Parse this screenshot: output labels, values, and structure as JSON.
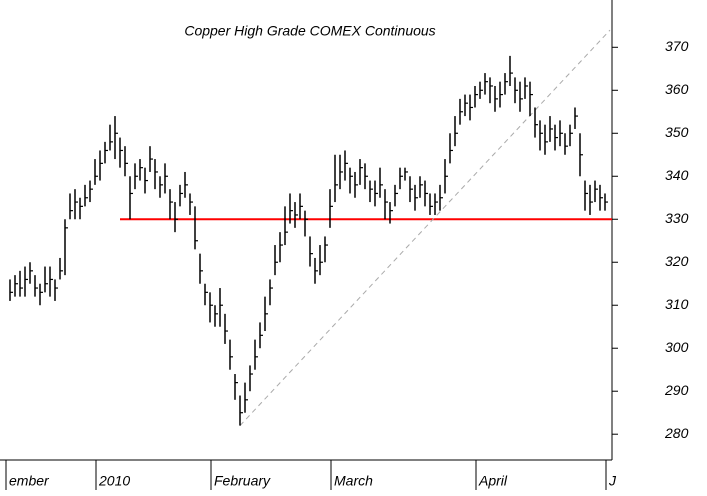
{
  "chart_data": {
    "type": "ohlc",
    "title": "Copper High Grade COMEX Continuous",
    "categories": [
      "ember",
      null,
      null,
      null,
      null,
      null,
      null,
      null,
      null,
      null,
      null,
      null,
      null,
      null,
      null,
      null,
      null,
      null,
      "2010",
      null,
      null,
      null,
      null,
      null,
      null,
      null,
      null,
      null,
      null,
      null,
      null,
      null,
      null,
      null,
      null,
      null,
      null,
      null,
      null,
      null,
      null,
      "February",
      null,
      null,
      null,
      null,
      null,
      null,
      null,
      null,
      null,
      null,
      null,
      null,
      null,
      null,
      null,
      null,
      null,
      null,
      null,
      null,
      null,
      null,
      null,
      "March",
      null,
      null,
      null,
      null,
      null,
      null,
      null,
      null,
      null,
      null,
      null,
      null,
      null,
      null,
      null,
      null,
      null,
      null,
      null,
      null,
      null,
      null,
      null,
      null,
      null,
      null,
      null,
      null,
      "April",
      null,
      null,
      null,
      null,
      null,
      null,
      null,
      null,
      null,
      null,
      null,
      null,
      null,
      null,
      null,
      null,
      null,
      null,
      null,
      null,
      null,
      null,
      null,
      null,
      null,
      "J"
    ],
    "high": [
      316,
      317,
      318,
      319,
      320,
      317,
      315,
      319,
      319,
      316,
      321,
      330,
      336,
      337,
      335,
      338,
      339,
      344,
      346,
      348,
      352,
      354,
      349,
      347,
      340,
      343,
      344,
      342,
      347,
      344,
      340,
      343,
      337,
      334,
      338,
      341,
      336,
      333,
      322,
      315,
      313,
      310,
      314,
      308,
      302,
      294,
      289,
      292,
      296,
      302,
      306,
      312,
      316,
      324,
      327,
      333,
      336,
      334,
      336,
      332,
      326,
      321,
      324,
      326,
      337,
      345,
      345,
      346,
      342,
      341,
      344,
      343,
      339,
      339,
      342,
      337,
      334,
      338,
      342,
      342,
      340,
      338,
      340,
      339,
      336,
      336,
      338,
      344,
      350,
      354,
      358,
      359,
      359,
      361,
      362,
      364,
      363,
      361,
      362,
      364,
      368,
      363,
      362,
      363,
      362,
      356,
      353,
      352,
      354,
      352,
      353,
      350,
      352,
      356,
      350,
      339,
      338,
      339,
      338,
      336,
      null
    ],
    "low": [
      311,
      312,
      312,
      312,
      315,
      312,
      310,
      313,
      312,
      311,
      316,
      317,
      330,
      330,
      330,
      333,
      334,
      338,
      339,
      343,
      346,
      344,
      342,
      340,
      330,
      337,
      339,
      336,
      341,
      337,
      335,
      336,
      330,
      327,
      333,
      335,
      331,
      323,
      315,
      310,
      306,
      305,
      305,
      301,
      295,
      288,
      282,
      285,
      290,
      295,
      300,
      304,
      310,
      317,
      320,
      324,
      329,
      328,
      330,
      326,
      319,
      315,
      317,
      320,
      328,
      334,
      337,
      339,
      336,
      335,
      338,
      337,
      334,
      333,
      335,
      330,
      329,
      333,
      337,
      339,
      334,
      332,
      335,
      333,
      331,
      331,
      332,
      336,
      343,
      347,
      352,
      354,
      353,
      356,
      358,
      359,
      357,
      355,
      356,
      359,
      361,
      357,
      355,
      358,
      354,
      349,
      346,
      345,
      348,
      346,
      347,
      345,
      347,
      351,
      340,
      332,
      331,
      334,
      332,
      332,
      null
    ],
    "close": [
      313,
      315,
      314,
      316,
      318,
      314,
      313,
      315,
      316,
      314,
      318,
      328,
      332,
      334,
      333,
      335,
      337,
      340,
      343,
      346,
      348,
      350,
      346,
      343,
      336,
      340,
      342,
      339,
      344,
      341,
      338,
      340,
      334,
      330,
      336,
      338,
      334,
      325,
      318,
      313,
      310,
      308,
      310,
      304,
      298,
      292,
      285,
      288,
      294,
      298,
      303,
      308,
      314,
      320,
      324,
      327,
      332,
      331,
      333,
      330,
      322,
      318,
      320,
      324,
      333,
      338,
      341,
      343,
      340,
      338,
      342,
      340,
      337,
      336,
      338,
      334,
      332,
      336,
      340,
      341,
      337,
      335,
      338,
      336,
      333,
      334,
      335,
      340,
      346,
      350,
      355,
      357,
      356,
      359,
      360,
      362,
      361,
      358,
      359,
      362,
      364,
      360,
      358,
      361,
      359,
      352,
      350,
      348,
      351,
      349,
      350,
      347,
      350,
      354,
      345,
      336,
      334,
      337,
      335,
      334,
      null
    ],
    "color": "#000000",
    "ylim": [
      274,
      381
    ],
    "yticks": [
      280,
      290,
      300,
      310,
      320,
      330,
      340,
      350,
      360,
      370
    ],
    "hline": {
      "value": 330,
      "from": 22,
      "color": "#ff0000"
    },
    "trendline": {
      "from": [
        46,
        282
      ],
      "to": [
        120,
        374
      ],
      "color": "#aaaaaa"
    }
  }
}
